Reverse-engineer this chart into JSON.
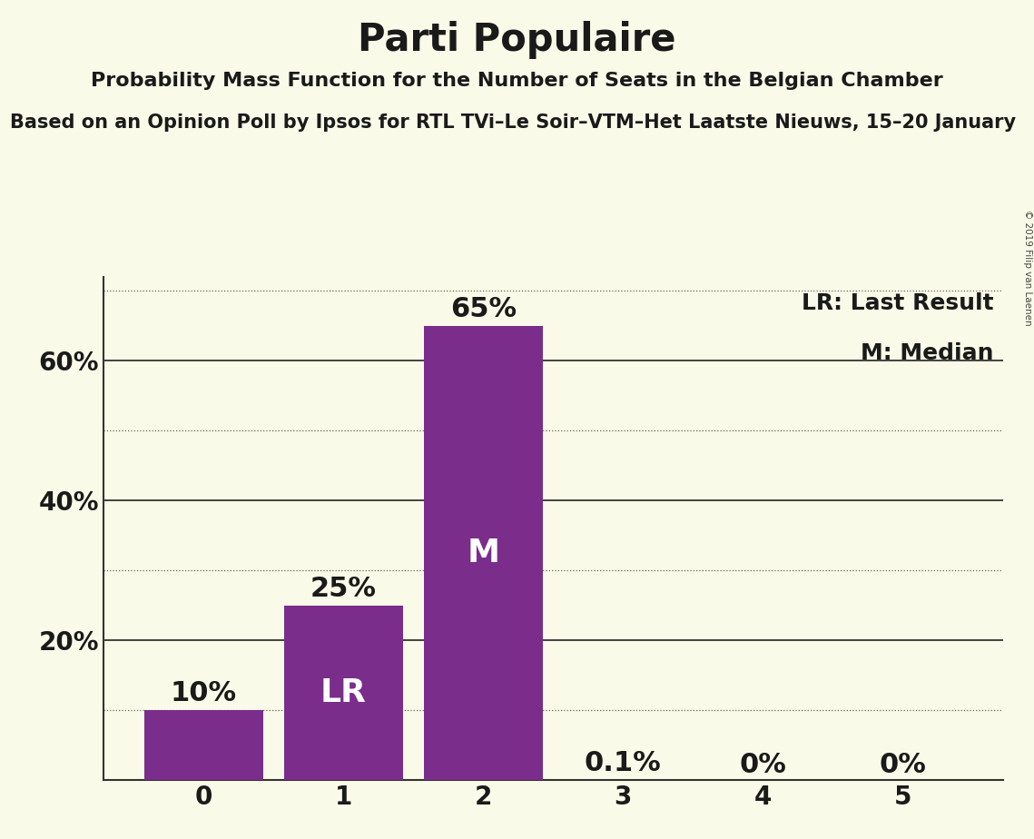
{
  "title": "Parti Populaire",
  "subtitle": "Probability Mass Function for the Number of Seats in the Belgian Chamber",
  "subtitle2": "Based on an Opinion Poll by Ipsos for RTL TVi–Le Soir–VTM–Het Laatste Nieuws, 15–20 January",
  "copyright": "© 2019 Filip van Laenen",
  "categories": [
    0,
    1,
    2,
    3,
    4,
    5
  ],
  "values": [
    0.1,
    0.25,
    0.65,
    0.001,
    0.0,
    0.0
  ],
  "bar_labels": [
    "10%",
    "25%",
    "65%",
    "0.1%",
    "0%",
    "0%"
  ],
  "inside_labels": [
    "",
    "LR",
    "M",
    "",
    "",
    ""
  ],
  "bar_color": "#7b2d8b",
  "background_color": "#fafae8",
  "ylim": [
    0,
    0.72
  ],
  "yticks": [
    0.0,
    0.2,
    0.4,
    0.6
  ],
  "ytick_labels": [
    "",
    "20%",
    "40%",
    "60%"
  ],
  "dotted_lines": [
    0.1,
    0.3,
    0.5,
    0.7
  ],
  "solid_lines": [
    0.2,
    0.4,
    0.6
  ],
  "legend_lr": "LR: Last Result",
  "legend_m": "M: Median",
  "title_fontsize": 30,
  "subtitle_fontsize": 16,
  "subtitle2_fontsize": 15,
  "bar_label_inside_color": "#ffffff",
  "bar_label_outside_color": "#1a1a1a",
  "bar_label_fontsize": 22,
  "inside_label_fontsize": 26,
  "legend_fontsize": 18,
  "axis_label_fontsize": 20
}
